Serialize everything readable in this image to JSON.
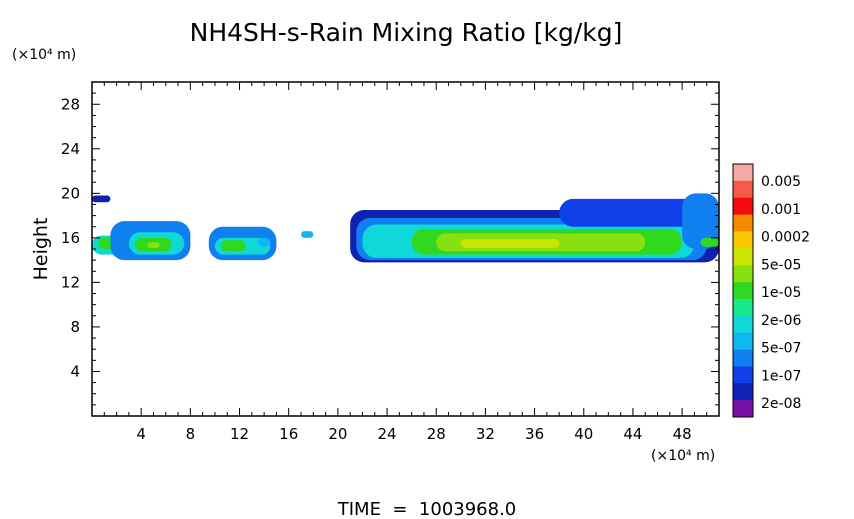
{
  "chart_data": {
    "type": "heatmap",
    "title": "NH4SH-s-Rain Mixing Ratio [kg/kg]",
    "xlabel": "",
    "ylabel": "Height",
    "x_unit": "(×10⁴ m)",
    "y_unit": "(×10⁴ m)",
    "xlim": [
      0,
      51
    ],
    "ylim": [
      0,
      30
    ],
    "x_ticks": [
      "4",
      "8",
      "12",
      "16",
      "20",
      "24",
      "28",
      "32",
      "36",
      "40",
      "44",
      "48"
    ],
    "y_ticks": [
      "4",
      "8",
      "12",
      "16",
      "20",
      "24",
      "28"
    ],
    "footer": "TIME  =  1003968.0",
    "colorbar": {
      "labels": [
        "0.005",
        "0.001",
        "0.0002",
        "5e-05",
        "1e-05",
        "2e-06",
        "5e-07",
        "1e-07",
        "2e-08"
      ],
      "colors_top_to_bottom": [
        "#f7a8a0",
        "#f45a4a",
        "#f20c10",
        "#f58a00",
        "#f5c800",
        "#c8e600",
        "#88e010",
        "#30d820",
        "#18e888",
        "#10d8d8",
        "#10b8f0",
        "#1080f0",
        "#1040e8",
        "#1020b0",
        "#7a10a8"
      ]
    },
    "field_cells": [
      {
        "x": [
          0,
          3
        ],
        "y": [
          14.5,
          16.2
        ],
        "level": 5
      },
      {
        "x": [
          0.5,
          2
        ],
        "y": [
          15,
          16
        ],
        "level": 7
      },
      {
        "x": [
          0,
          1.5
        ],
        "y": [
          19.2,
          19.8
        ],
        "level": 1
      },
      {
        "x": [
          1.5,
          8
        ],
        "y": [
          14,
          17.5
        ],
        "level": 3
      },
      {
        "x": [
          3,
          7.5
        ],
        "y": [
          14.5,
          16.5
        ],
        "level": 5
      },
      {
        "x": [
          3.5,
          6.5
        ],
        "y": [
          14.8,
          16
        ],
        "level": 7
      },
      {
        "x": [
          4.5,
          5.5
        ],
        "y": [
          15.1,
          15.6
        ],
        "level": 8
      },
      {
        "x": [
          9.5,
          15
        ],
        "y": [
          14,
          17
        ],
        "level": 3
      },
      {
        "x": [
          10,
          14.5
        ],
        "y": [
          14.5,
          16
        ],
        "level": 5
      },
      {
        "x": [
          10.5,
          12.5
        ],
        "y": [
          14.8,
          15.8
        ],
        "level": 7
      },
      {
        "x": [
          13.5,
          14.5
        ],
        "y": [
          15.2,
          16
        ],
        "level": 4
      },
      {
        "x": [
          17,
          18
        ],
        "y": [
          16,
          16.6
        ],
        "level": 4
      },
      {
        "x": [
          21,
          51
        ],
        "y": [
          13.8,
          18.5
        ],
        "level": 1
      },
      {
        "x": [
          21.5,
          50
        ],
        "y": [
          14,
          17.8
        ],
        "level": 3
      },
      {
        "x": [
          22,
          49
        ],
        "y": [
          14.2,
          17.2
        ],
        "level": 5
      },
      {
        "x": [
          26,
          48
        ],
        "y": [
          14.5,
          16.8
        ],
        "level": 7
      },
      {
        "x": [
          28,
          45
        ],
        "y": [
          14.8,
          16.4
        ],
        "level": 8
      },
      {
        "x": [
          30,
          38
        ],
        "y": [
          15.1,
          15.9
        ],
        "level": 9
      },
      {
        "x": [
          38,
          51
        ],
        "y": [
          17,
          19.5
        ],
        "level": 2
      },
      {
        "x": [
          48,
          51
        ],
        "y": [
          15,
          20
        ],
        "level": 3
      },
      {
        "x": [
          49.5,
          51
        ],
        "y": [
          15.2,
          16
        ],
        "level": 7
      }
    ]
  }
}
